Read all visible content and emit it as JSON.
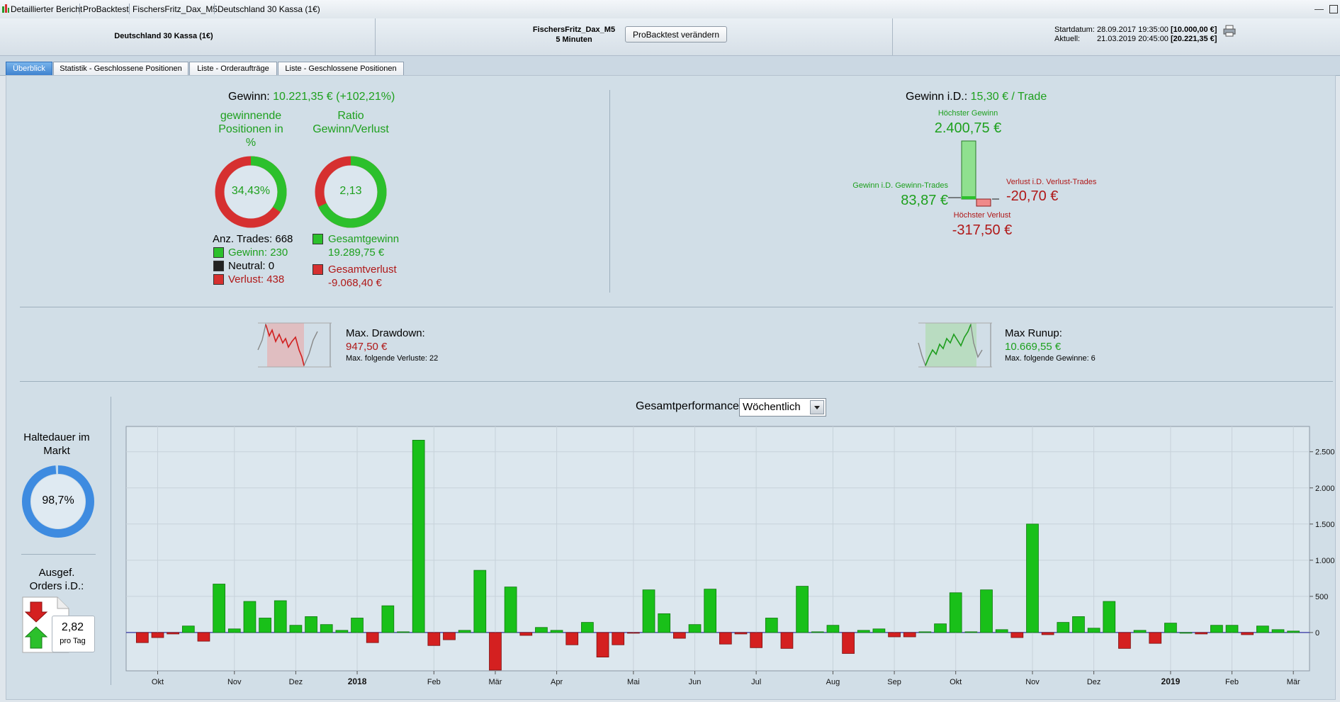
{
  "breadcrumb": [
    "Detaillierter Bericht",
    "ProBacktest",
    "FischersFritz_Dax_M5",
    "Deutschland 30 Kassa (1€)"
  ],
  "header": {
    "instrument": "Deutschland 30 Kassa (1€)",
    "strategy": "FischersFritz_Dax_M5",
    "timeframe": "5 Minuten",
    "change_button": "ProBacktest verändern",
    "start_label": "Startdatum:",
    "start_date": "28.09.2017 19:35:00",
    "start_value": "[10.000,00 €]",
    "current_label": "Aktuell:",
    "current_date": "21.03.2019 20:45:00",
    "current_value": "[20.221,35 €]"
  },
  "tabs": [
    "Überblick",
    "Statistik - Geschlossene Positionen",
    "Liste - Orderaufträge",
    "Liste - Geschlossene Positionen"
  ],
  "overview": {
    "gain_label": "Gewinn:",
    "gain_value": "10.221,35 € (+102,21%)",
    "winning_title": [
      "gewinnende",
      "Positionen in",
      "%"
    ],
    "winning_pct_text": "34,43%",
    "winning_fraction": 0.3443,
    "ratio_title": [
      "Ratio",
      "Gewinn/Verlust"
    ],
    "ratio_text": "2,13",
    "ratio_fraction": 0.68,
    "trades_label": "Anz. Trades: 668",
    "wins_label": "Gewinn: 230",
    "neutral_label": "Neutral: 0",
    "losses_label": "Verlust: 438",
    "total_gain_label": "Gesamtgewinn",
    "total_gain_value": "19.289,75 €",
    "total_loss_label": "Gesamtverlust",
    "total_loss_value": "-9.068,40 €"
  },
  "avg": {
    "label": "Gewinn i.D.:",
    "value": "15,30 € / Trade",
    "max_gain_label": "Höchster Gewinn",
    "max_gain_value": "2.400,75 €",
    "avg_win_label": "Gewinn i.D. Gewinn-Trades",
    "avg_win_value": "83,87 €",
    "avg_loss_label": "Verlust i.D. Verlust-Trades",
    "avg_loss_value": "-20,70 €",
    "max_loss_label": "Höchster Verlust",
    "max_loss_value": "-317,50 €"
  },
  "drawdown": {
    "title": "Max. Drawdown:",
    "value": "947,50 €",
    "sub": "Max. folgende Verluste: 22"
  },
  "runup": {
    "title": "Max Runup:",
    "value": "10.669,55 €",
    "sub": "Max. folgende Gewinne: 6"
  },
  "holding": {
    "title": [
      "Haltedauer im",
      "Markt"
    ],
    "value_text": "98,7%",
    "fraction": 0.987
  },
  "orders": {
    "title": [
      "Ausgef.",
      "Orders i.D.:"
    ],
    "value": "2,82",
    "unit": "pro Tag"
  },
  "perf": {
    "title": "Gesamtperformance",
    "mode": "Wöchentlich"
  },
  "colors": {
    "green": "#1ea01e",
    "red": "#b01818",
    "bar_green": "#19c019",
    "bar_red": "#d42020",
    "accent_blue": "#3f82cf"
  },
  "chart_data": {
    "type": "bar",
    "title": "Gesamtperformance",
    "xlabel": "",
    "ylabel": "",
    "ylim": [
      -530,
      2850
    ],
    "yticks": [
      0,
      500,
      1000,
      1500,
      2000,
      2500
    ],
    "ytick_labels": [
      "0",
      "500",
      "1.000",
      "1.500",
      "2.000",
      "2.500"
    ],
    "month_ticks": [
      {
        "label": "Okt",
        "index": 1,
        "bold": false
      },
      {
        "label": "Nov",
        "index": 6,
        "bold": false
      },
      {
        "label": "Dez",
        "index": 10,
        "bold": false
      },
      {
        "label": "2018",
        "index": 14,
        "bold": true
      },
      {
        "label": "Feb",
        "index": 19,
        "bold": false
      },
      {
        "label": "Mär",
        "index": 23,
        "bold": false
      },
      {
        "label": "Apr",
        "index": 27,
        "bold": false
      },
      {
        "label": "Mai",
        "index": 32,
        "bold": false
      },
      {
        "label": "Jun",
        "index": 36,
        "bold": false
      },
      {
        "label": "Jul",
        "index": 40,
        "bold": false
      },
      {
        "label": "Aug",
        "index": 45,
        "bold": false
      },
      {
        "label": "Sep",
        "index": 49,
        "bold": false
      },
      {
        "label": "Okt",
        "index": 53,
        "bold": false
      },
      {
        "label": "Nov",
        "index": 58,
        "bold": false
      },
      {
        "label": "Dez",
        "index": 62,
        "bold": false
      },
      {
        "label": "2019",
        "index": 67,
        "bold": true
      },
      {
        "label": "Feb",
        "index": 71,
        "bold": false
      },
      {
        "label": "Mär",
        "index": 75,
        "bold": false
      }
    ],
    "values": [
      -140,
      -70,
      -20,
      90,
      -120,
      670,
      50,
      430,
      200,
      440,
      100,
      220,
      110,
      30,
      200,
      -140,
      370,
      10,
      2660,
      -180,
      -100,
      30,
      860,
      -520,
      630,
      -40,
      70,
      30,
      -170,
      140,
      -340,
      -170,
      -10,
      590,
      260,
      -80,
      110,
      600,
      -160,
      -20,
      -210,
      200,
      -220,
      640,
      10,
      100,
      -290,
      30,
      50,
      -60,
      -60,
      10,
      120,
      550,
      10,
      590,
      40,
      -70,
      1500,
      -30,
      140,
      220,
      60,
      430,
      -220,
      30,
      -150,
      130,
      0,
      -20,
      100,
      100,
      -30,
      90,
      40,
      20
    ]
  }
}
